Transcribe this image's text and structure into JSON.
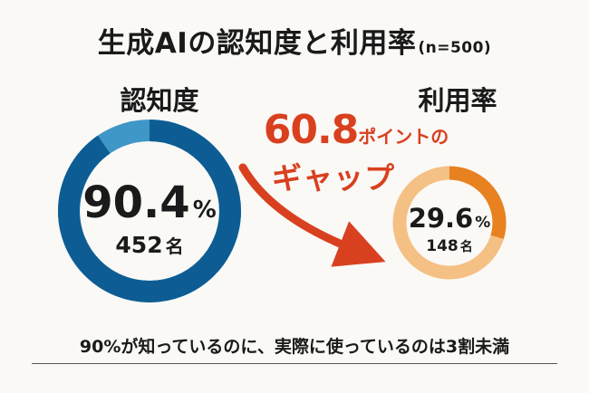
{
  "title": {
    "main": "生成AIの認知度と利用率",
    "sample": "(n=500)"
  },
  "awareness": {
    "heading": "認知度",
    "percent": "90.4",
    "percent_unit": "%",
    "count": "452",
    "count_unit": "名",
    "value": 90.4,
    "color_fill": "#0d5d94",
    "color_track": "#3f97c7"
  },
  "usage": {
    "heading": "利用率",
    "percent": "29.6",
    "percent_unit": "%",
    "count": "148",
    "count_unit": "名",
    "value": 29.6,
    "color_fill": "#e8811f",
    "color_track": "#f5c084"
  },
  "gap": {
    "value": "60.8",
    "unit": "ポイントの",
    "label": "ギャップ",
    "color": "#d9401f"
  },
  "footer": "90%が知っているのに、実際に使っているのは3割未満",
  "chart_data": [
    {
      "type": "pie",
      "title": "認知度",
      "values": [
        90.4,
        9.6
      ],
      "center_label": "90.4%",
      "center_sublabel": "452名"
    },
    {
      "type": "pie",
      "title": "利用率",
      "values": [
        29.6,
        70.4
      ],
      "center_label": "29.6%",
      "center_sublabel": "148名"
    }
  ]
}
